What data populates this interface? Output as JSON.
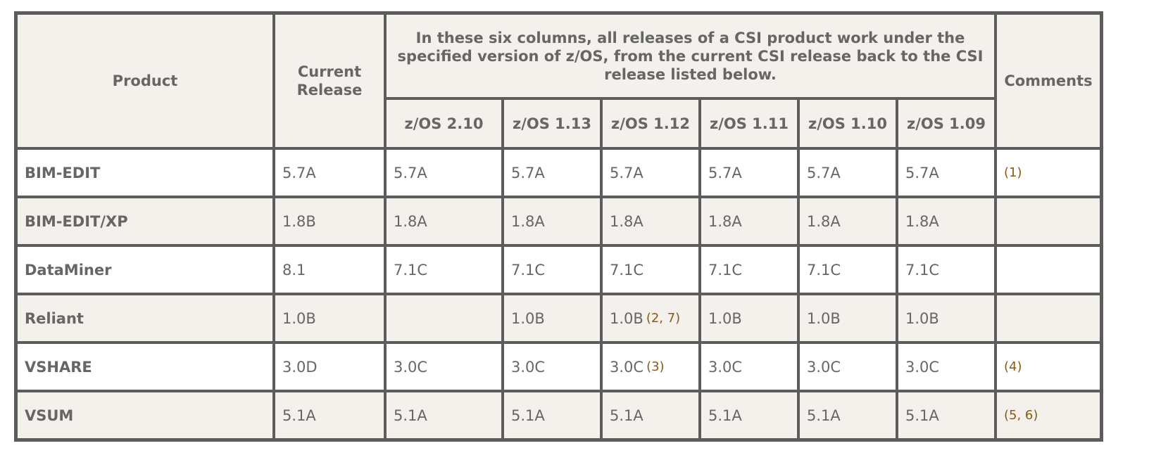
{
  "header": {
    "product": "Product",
    "current_release": "Current Release",
    "span_text": "In these six columns, all releases of a CSI product work under the specified version of z/OS, from the current CSI release back to the CSI release listed below.",
    "comments": "Comments",
    "zos": [
      "z/OS 2.10",
      "z/OS 1.13",
      "z/OS 1.12",
      "z/OS 1.11",
      "z/OS 1.10",
      "z/OS 1.09"
    ]
  },
  "rows": [
    {
      "product": "BIM-EDIT",
      "current": "5.7A",
      "z0": "5.7A",
      "z1": "5.7A",
      "z2": "5.7A",
      "z3": "5.7A",
      "z4": "5.7A",
      "z5": "5.7A",
      "z2_note": "",
      "comment": "(1)"
    },
    {
      "product": "BIM-EDIT/XP",
      "current": "1.8B",
      "z0": "1.8A",
      "z1": "1.8A",
      "z2": "1.8A",
      "z3": "1.8A",
      "z4": "1.8A",
      "z5": "1.8A",
      "z2_note": "",
      "comment": ""
    },
    {
      "product": "DataMiner",
      "current": "8.1",
      "z0": "7.1C",
      "z1": "7.1C",
      "z2": "7.1C",
      "z3": "7.1C",
      "z4": "7.1C",
      "z5": "7.1C",
      "z2_note": "",
      "comment": ""
    },
    {
      "product": "Reliant",
      "current": "1.0B",
      "z0": "",
      "z1": "1.0B",
      "z2": "1.0B",
      "z3": "1.0B",
      "z4": "1.0B",
      "z5": "1.0B",
      "z2_note": "(2, 7)",
      "comment": ""
    },
    {
      "product": "VSHARE",
      "current": "3.0D",
      "z0": "3.0C",
      "z1": "3.0C",
      "z2": "3.0C",
      "z3": "3.0C",
      "z4": "3.0C",
      "z5": "3.0C",
      "z2_note": "(3)",
      "comment": "(4)"
    },
    {
      "product": "VSUM",
      "current": "5.1A",
      "z0": "5.1A",
      "z1": "5.1A",
      "z2": "5.1A",
      "z3": "5.1A",
      "z4": "5.1A",
      "z5": "5.1A",
      "z2_note": "",
      "comment": "(5, 6)"
    }
  ],
  "colors": {
    "header_bg": "#f4f1ec",
    "border": "#5c5c5c",
    "zos_header": "#8e2b3c",
    "note": "#8a5a14",
    "text": "#666666"
  }
}
